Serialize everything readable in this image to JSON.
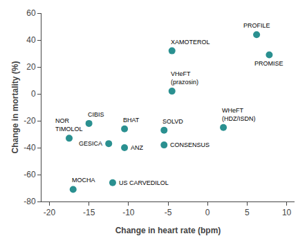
{
  "chart_data": {
    "type": "scatter",
    "x": [
      6.2,
      7.8,
      -4.5,
      -4.5,
      2.0,
      -15.0,
      -10.5,
      -17.5,
      -12.5,
      -10.5,
      -5.5,
      -5.5,
      -17.0,
      -12.0
    ],
    "values": [
      44.0,
      29.0,
      32.0,
      2.0,
      -25.0,
      -22.0,
      -26.0,
      -33.0,
      -37.0,
      -40.0,
      -27.0,
      -38.0,
      -71.0,
      -66.0
    ],
    "annotations": [
      "PROFILE",
      "PROMISE",
      "XAMOTEROL",
      "VHeFT\n(prazosin)",
      "WHeFT\n(HDZ/ISDN)",
      "CIBIS",
      "BHAT",
      "NOR\nTIMOLOL",
      "GESICA",
      "ANZ",
      "SOLVD",
      "CONSENSUS",
      "MOCHA",
      "US CARVEDILOL"
    ],
    "color": "#2a9090",
    "xlabel": "Change in heart rate (bpm)",
    "ylabel": "Change in mortality (%)",
    "xlim": [
      -21,
      11
    ],
    "ylim": [
      -80,
      60
    ],
    "xticks": [
      -20,
      -15,
      -10,
      -5,
      0,
      5,
      10
    ],
    "yticks": [
      -80,
      -60,
      -40,
      -20,
      0,
      20,
      40,
      60
    ],
    "grid": false
  }
}
